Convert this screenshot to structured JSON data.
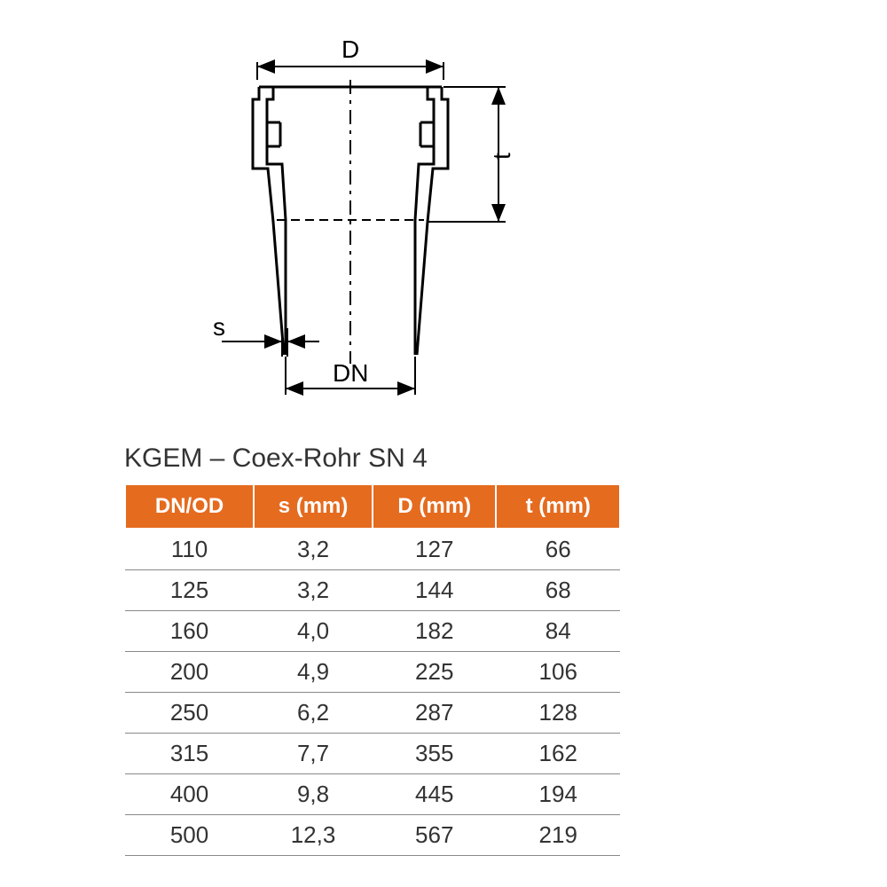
{
  "title": "KGEM – Coex-Rohr SN 4",
  "diagram": {
    "labels": {
      "D": "D",
      "t": "t",
      "s": "s",
      "DN": "DN"
    },
    "stroke_color": "#000000",
    "stroke_width_main": 3,
    "stroke_width_dim": 2,
    "dash_pattern": "14 6 4 6"
  },
  "table": {
    "header_bg": "#e56b1f",
    "header_fg": "#ffffff",
    "row_border": "#888888",
    "text_color": "#333333",
    "columns": [
      "DN/OD",
      "s (mm)",
      "D (mm)",
      "t (mm)"
    ],
    "col_widths": [
      "26%",
      "24%",
      "25%",
      "25%"
    ],
    "rows": [
      [
        "110",
        "3,2",
        "127",
        "66"
      ],
      [
        "125",
        "3,2",
        "144",
        "68"
      ],
      [
        "160",
        "4,0",
        "182",
        "84"
      ],
      [
        "200",
        "4,9",
        "225",
        "106"
      ],
      [
        "250",
        "6,2",
        "287",
        "128"
      ],
      [
        "315",
        "7,7",
        "355",
        "162"
      ],
      [
        "400",
        "9,8",
        "445",
        "194"
      ],
      [
        "500",
        "12,3",
        "567",
        "219"
      ]
    ]
  }
}
